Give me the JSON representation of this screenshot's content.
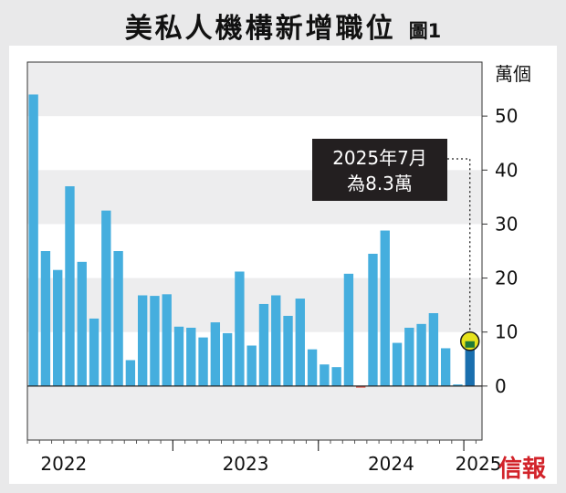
{
  "header": {
    "title": "美私人機構新增職位",
    "figure_label": "圖1"
  },
  "brand": "信報",
  "colors": {
    "bar": "#45aede",
    "bar_highlight": "#1a6fae",
    "negative_bar": "#e0574a",
    "band": "#ededee",
    "annotation_bg": "#231f20",
    "marker_fill": "#e6e21c"
  },
  "chart_data": {
    "type": "bar",
    "title": "美私人機構新增職位",
    "unit_label": "萬個",
    "ylim": [
      -10,
      60
    ],
    "yticks": [
      0,
      10,
      20,
      30,
      40,
      50
    ],
    "grid": "alternating horizontal bands",
    "year_labels": [
      "2022",
      "2023",
      "2024",
      "2025"
    ],
    "values": [
      54,
      25,
      21.5,
      37,
      23,
      12.5,
      32.5,
      25,
      4.8,
      16.8,
      16.7,
      17,
      11,
      10.8,
      9,
      11.8,
      9.8,
      21.2,
      7.5,
      15.2,
      16.8,
      13,
      16.2,
      6.8,
      4,
      3.5,
      20.8,
      -0.3,
      24.5,
      28.8,
      8,
      10.8,
      11.5,
      13.5,
      7,
      0.3,
      8.3
    ],
    "highlight_index": 36,
    "annotation": {
      "line1": "2025年7月",
      "line2": "為8.3萬"
    }
  }
}
